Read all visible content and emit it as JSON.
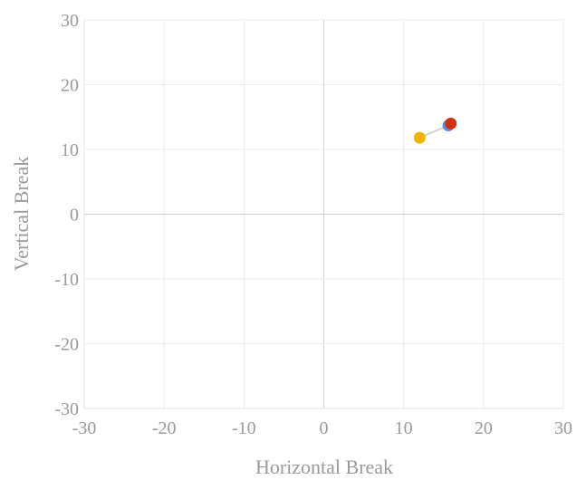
{
  "chart_data": {
    "type": "scatter",
    "xlabel": "Horizontal Break",
    "ylabel": "Vertical Break",
    "xlim": [
      -30,
      30
    ],
    "ylim": [
      -30,
      30
    ],
    "xticks": [
      -30,
      -20,
      -10,
      0,
      10,
      20,
      30
    ],
    "yticks": [
      -30,
      -20,
      -10,
      0,
      10,
      20,
      30
    ],
    "grid": true,
    "connector": {
      "color": "#d0d0d0",
      "points": [
        [
          12.0,
          11.8
        ],
        [
          15.6,
          13.7
        ],
        [
          15.9,
          14.0
        ]
      ]
    },
    "series": [
      {
        "color": "#f0b400",
        "points": [
          {
            "x": 12.0,
            "y": 11.8
          }
        ]
      },
      {
        "color": "#5b8def",
        "points": [
          {
            "x": 15.6,
            "y": 13.7
          }
        ]
      },
      {
        "color": "#cc3311",
        "points": [
          {
            "x": 15.9,
            "y": 14.0
          }
        ]
      }
    ]
  }
}
